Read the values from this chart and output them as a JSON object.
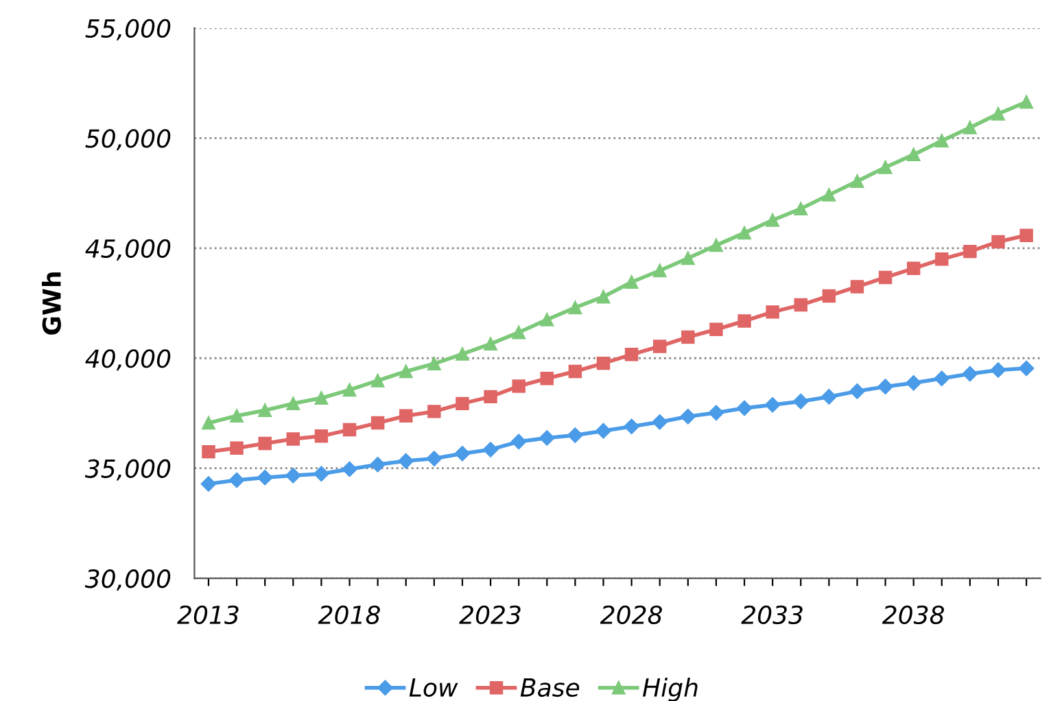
{
  "chart_data": {
    "type": "line",
    "ylabel": "GWh",
    "categories": [
      "2013",
      null,
      null,
      null,
      null,
      "2018",
      null,
      null,
      null,
      null,
      "2023",
      null,
      null,
      null,
      null,
      "2028",
      null,
      null,
      null,
      null,
      "2033",
      null,
      null,
      null,
      null,
      "2038",
      null,
      null,
      null,
      null
    ],
    "series": [
      {
        "name": "Low",
        "color": "#4a9be8",
        "marker": "diamond",
        "values": [
          34290,
          34460,
          34580,
          34670,
          34750,
          34960,
          35170,
          35330,
          35440,
          35670,
          35850,
          36210,
          36380,
          36500,
          36700,
          36900,
          37100,
          37350,
          37520,
          37730,
          37880,
          38040,
          38250,
          38500,
          38710,
          38880,
          39080,
          39290,
          39460,
          39540
        ]
      },
      {
        "name": "Base",
        "color": "#e06666",
        "marker": "square",
        "values": [
          35750,
          35920,
          36130,
          36330,
          36460,
          36750,
          37060,
          37380,
          37580,
          37940,
          38250,
          38730,
          39080,
          39400,
          39770,
          40170,
          40540,
          40960,
          41310,
          41690,
          42100,
          42420,
          42830,
          43250,
          43670,
          44080,
          44500,
          44850,
          45290,
          45580
        ]
      },
      {
        "name": "High",
        "color": "#7dc97a",
        "marker": "triangle",
        "values": [
          37060,
          37380,
          37630,
          37940,
          38190,
          38560,
          38980,
          39400,
          39750,
          40190,
          40650,
          41170,
          41750,
          42300,
          42790,
          43460,
          43980,
          44540,
          45130,
          45690,
          46270,
          46790,
          47420,
          48040,
          48670,
          49250,
          49880,
          50480,
          51100,
          51640
        ]
      }
    ],
    "ylim": [
      30000,
      55000
    ],
    "yticks": [
      {
        "value": 30000,
        "label": "30,000"
      },
      {
        "value": 35000,
        "label": "35,000"
      },
      {
        "value": 40000,
        "label": "40,000"
      },
      {
        "value": 45000,
        "label": "45,000"
      },
      {
        "value": 50000,
        "label": "50,000"
      },
      {
        "value": 55000,
        "label": "55,000"
      }
    ],
    "grid": "y",
    "legend": "bottom",
    "line_style": "solid"
  }
}
